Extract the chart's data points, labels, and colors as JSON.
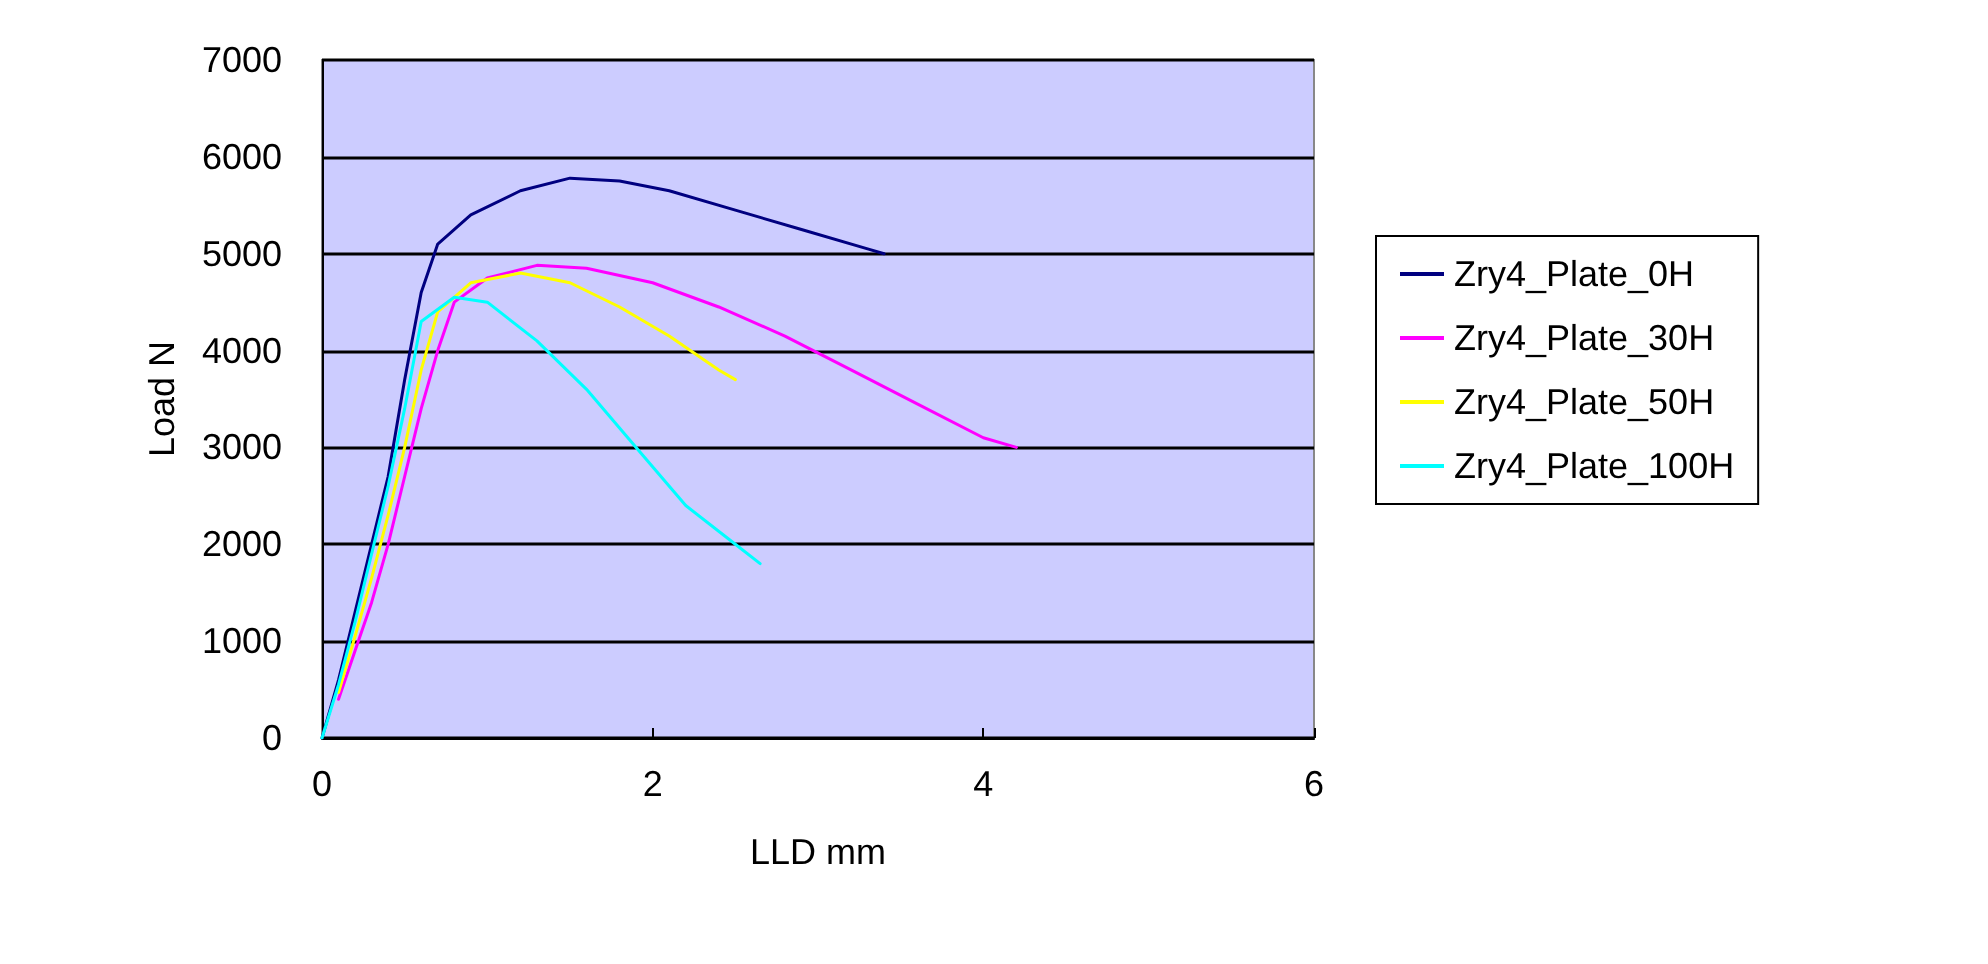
{
  "chart_data": {
    "type": "line",
    "xlabel": "LLD mm",
    "ylabel": "Load N",
    "xlim": [
      0,
      6
    ],
    "xticks": [
      0,
      2,
      4,
      6
    ],
    "ylim": [
      0,
      7000
    ],
    "yticks": [
      0,
      1000,
      2000,
      3000,
      4000,
      5000,
      6000,
      7000
    ],
    "grid": "y",
    "legend": "right",
    "marker": "none",
    "line_style": "solid",
    "series": [
      {
        "name": "Zry4_Plate_0H",
        "color": "#000080",
        "x": [
          0,
          0.1,
          0.2,
          0.3,
          0.4,
          0.5,
          0.6,
          0.7,
          0.9,
          1.2,
          1.5,
          1.8,
          2.1,
          2.5,
          2.9,
          3.3,
          3.4
        ],
        "values": [
          0,
          600,
          1300,
          2000,
          2700,
          3700,
          4600,
          5100,
          5400,
          5650,
          5780,
          5750,
          5650,
          5450,
          5250,
          5050,
          5000
        ]
      },
      {
        "name": "Zry4_Plate_30H",
        "color": "#ff00ff",
        "x": [
          0.1,
          0.2,
          0.3,
          0.4,
          0.5,
          0.6,
          0.7,
          0.8,
          1.0,
          1.3,
          1.6,
          2.0,
          2.4,
          2.8,
          3.2,
          3.6,
          4.0,
          4.2
        ],
        "values": [
          400,
          900,
          1400,
          2000,
          2700,
          3400,
          4000,
          4500,
          4750,
          4880,
          4850,
          4700,
          4450,
          4150,
          3800,
          3450,
          3100,
          3000
        ]
      },
      {
        "name": "Zry4_Plate_50H",
        "color": "#ffff00",
        "x": [
          0.1,
          0.2,
          0.3,
          0.4,
          0.5,
          0.6,
          0.7,
          0.9,
          1.2,
          1.5,
          1.8,
          2.1,
          2.4,
          2.5
        ],
        "values": [
          470,
          1050,
          1650,
          2300,
          3000,
          3800,
          4400,
          4700,
          4800,
          4700,
          4450,
          4150,
          3800,
          3700
        ]
      },
      {
        "name": "Zry4_Plate_100H",
        "color": "#00ffff",
        "x": [
          0,
          0.1,
          0.2,
          0.3,
          0.4,
          0.5,
          0.6,
          0.8,
          1.0,
          1.3,
          1.6,
          1.9,
          2.2,
          2.5,
          2.65
        ],
        "values": [
          0,
          550,
          1200,
          1900,
          2600,
          3400,
          4300,
          4550,
          4500,
          4100,
          3600,
          3000,
          2400,
          2000,
          1800
        ]
      }
    ]
  }
}
